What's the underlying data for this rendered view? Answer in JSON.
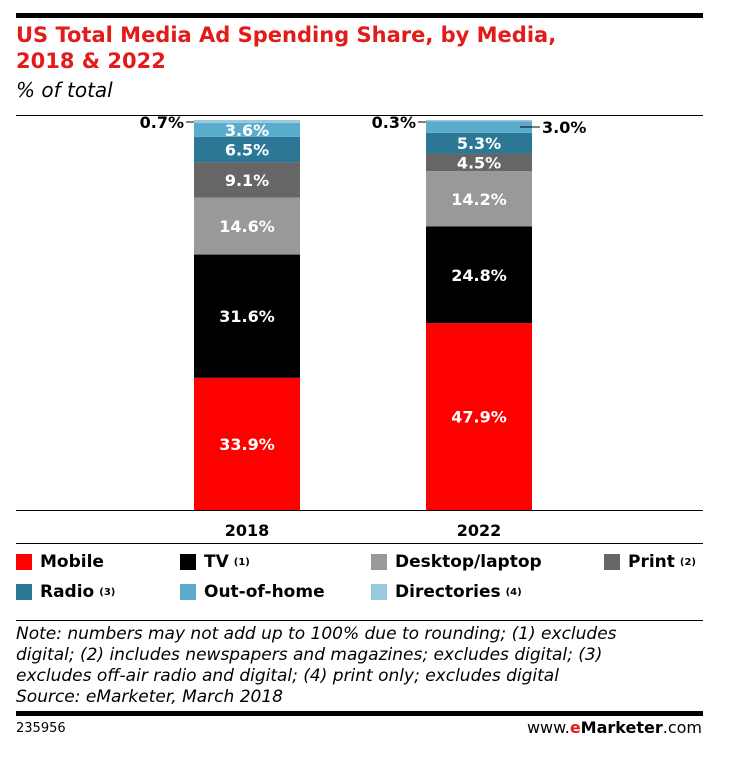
{
  "title_line1": "US Total Media Ad Spending Share, by Media,",
  "title_line2": "2018 & 2022",
  "subtitle": "% of total",
  "note_lines": [
    "Note: numbers may not add up to 100% due to rounding; (1) excludes",
    "digital; (2) includes newspapers and magazines; excludes digital; (3)",
    "excludes off-air radio and digital; (4) print only; excludes digital",
    "Source: eMarketer, March 2018"
  ],
  "chart_id": "235956",
  "brand": {
    "prefix": "www.",
    "e": "e",
    "marketer": "Marketer",
    "suffix": ".com"
  },
  "legend": [
    {
      "label": "Mobile",
      "note": "",
      "color": "#ff0000"
    },
    {
      "label": "TV",
      "note": "(1)",
      "color": "#000000"
    },
    {
      "label": "Desktop/laptop",
      "note": "",
      "color": "#999999"
    },
    {
      "label": "Print",
      "note": "(2)",
      "color": "#666666"
    },
    {
      "label": "Radio",
      "note": "(3)",
      "color": "#2c7796"
    },
    {
      "label": "Out-of-home",
      "note": "",
      "color": "#5aaccd"
    },
    {
      "label": "Directories",
      "note": "(4)",
      "color": "#9ac9dd"
    }
  ],
  "chart_data": {
    "type": "bar",
    "stacked": true,
    "categories": [
      "2018",
      "2022"
    ],
    "series": [
      {
        "name": "Mobile",
        "values": [
          33.9,
          47.9
        ],
        "labels": [
          "33.9%",
          "47.9%"
        ],
        "color": "#ff0000"
      },
      {
        "name": "TV",
        "values": [
          31.6,
          24.8
        ],
        "labels": [
          "31.6%",
          "24.8%"
        ],
        "color": "#000000"
      },
      {
        "name": "Desktop/laptop",
        "values": [
          14.6,
          14.2
        ],
        "labels": [
          "14.6%",
          "14.2%"
        ],
        "color": "#999999"
      },
      {
        "name": "Print",
        "values": [
          9.1,
          4.5
        ],
        "labels": [
          "9.1%",
          "4.5%"
        ],
        "color": "#666666"
      },
      {
        "name": "Radio",
        "values": [
          6.5,
          5.3
        ],
        "labels": [
          "6.5%",
          "5.3%"
        ],
        "color": "#2c7796"
      },
      {
        "name": "Out-of-home",
        "values": [
          3.6,
          3.0
        ],
        "labels": [
          "3.6%",
          "3.0%"
        ],
        "color": "#5aaccd"
      },
      {
        "name": "Directories",
        "values": [
          0.7,
          0.3
        ],
        "labels": [
          "0.7%",
          "0.3%"
        ],
        "color": "#9ac9dd"
      }
    ],
    "ylim": [
      0,
      100
    ],
    "grid": false,
    "legend_position": "bottom"
  }
}
